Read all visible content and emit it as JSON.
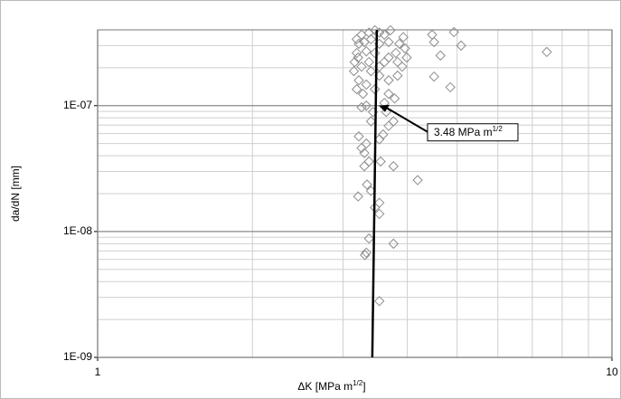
{
  "chart_data": {
    "type": "scatter",
    "x_label": {
      "text": "ΔK [MPa m",
      "sup": "1/2",
      "tail": "]"
    },
    "y_label": "da/dN [mm]",
    "xlog": true,
    "ylog": true,
    "grid": true,
    "minor_grid": true,
    "xlim": [
      1,
      10
    ],
    "ylim": [
      1e-09,
      4e-07
    ],
    "xticks": [
      1,
      10
    ],
    "yticks": [
      {
        "value": 1e-09,
        "label": "1E-09"
      },
      {
        "value": 1e-08,
        "label": "1E-08"
      },
      {
        "value": 1e-07,
        "label": "1E-07"
      }
    ],
    "color": "#8c8c8c",
    "x": [
      7.47,
      5.09,
      4.93,
      4.47,
      4.51,
      4.64,
      4.51,
      4.85,
      4.19,
      3.76,
      3.53,
      3.37,
      3.31,
      3.76,
      3.33,
      3.21,
      3.53,
      3.46,
      3.53,
      3.4,
      3.34,
      3.55,
      3.3,
      3.37,
      3.26,
      3.3,
      3.22,
      3.33,
      3.59,
      3.68,
      3.76,
      3.4,
      3.53,
      3.43,
      3.33,
      3.26,
      3.61,
      3.19,
      3.28,
      3.68,
      3.83,
      3.91,
      3.96,
      3.99,
      3.86,
      3.93,
      3.71,
      3.61,
      3.53,
      3.46,
      3.37,
      3.26,
      3.19,
      3.22,
      3.3,
      3.4,
      3.53,
      3.68,
      3.8,
      3.68,
      3.61,
      3.46,
      3.33,
      3.19,
      3.16,
      3.26,
      3.4,
      3.53,
      3.68,
      3.22,
      3.33,
      3.46,
      3.15,
      3.21,
      3.37,
      3.53,
      3.83,
      3.78,
      3.64
    ],
    "values": [
      2.67e-07,
      3e-07,
      3.84e-07,
      3.66e-07,
      3.2e-07,
      2.5e-07,
      1.7e-07,
      1.4e-07,
      2.56e-08,
      3.3e-08,
      2.8e-09,
      8.8e-09,
      6.5e-09,
      8e-09,
      6.8e-09,
      1.9e-08,
      1.69e-08,
      1.55e-08,
      1.38e-08,
      2.1e-08,
      2.36e-08,
      3.6e-08,
      3.3e-08,
      3.6e-08,
      4.6e-08,
      4.2e-08,
      5.7e-08,
      5e-08,
      5.9e-08,
      6.9e-08,
      7.5e-08,
      7.5e-08,
      5.4e-08,
      8.9e-08,
      1e-07,
      9.7e-08,
      1.05e-07,
      1.35e-07,
      1.24e-07,
      1.24e-07,
      1.73e-07,
      2.04e-07,
      2.85e-07,
      2.41e-07,
      3.1e-07,
      3.5e-07,
      3.97e-07,
      3.66e-07,
      3.8e-07,
      3.97e-07,
      3.8e-07,
      3.66e-07,
      3.37e-07,
      3.1e-07,
      3.2e-07,
      3.37e-07,
      3.1e-07,
      3.2e-07,
      2.62e-07,
      2.41e-07,
      2.22e-07,
      2.62e-07,
      2.7e-07,
      2.62e-07,
      2.22e-07,
      2.04e-07,
      1.88e-07,
      1.73e-07,
      1.59e-07,
      1.59e-07,
      1.47e-07,
      1.35e-07,
      1.88e-07,
      2.41e-07,
      2.22e-07,
      2.04e-07,
      2.22e-07,
      1.14e-07,
      8.9e-08
    ],
    "fit_line": {
      "color": "#000000",
      "x": [
        3.42,
        3.49
      ],
      "values": [
        1e-09,
        4e-07
      ]
    },
    "annotation": {
      "text": "3.48 MPa m",
      "sup": "1/2",
      "x": 3.52,
      "y": 1e-07
    }
  }
}
